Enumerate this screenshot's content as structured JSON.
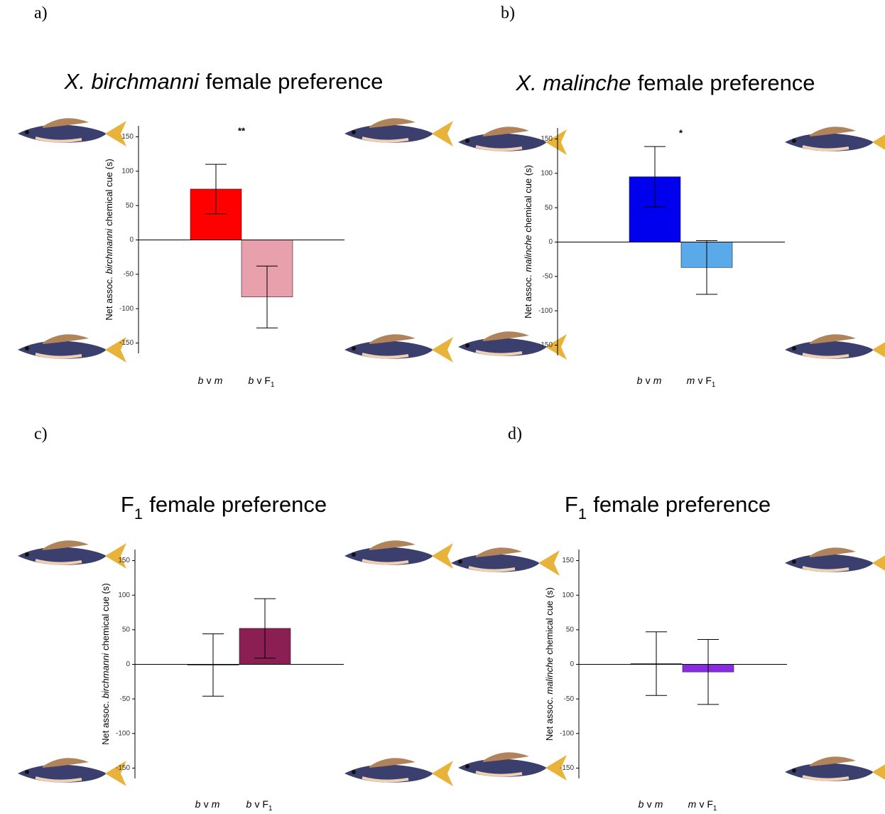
{
  "chart_data": [
    {
      "type": "bar",
      "panel_label": "a)",
      "title": [
        {
          "text": "X. birchmanni",
          "style": "italic"
        },
        {
          "text": "female preference"
        }
      ],
      "ylabel": [
        {
          "text": "Net assoc."
        },
        {
          "text": "birchmanni",
          "style": "italic"
        },
        {
          "text": "chemical cue (s)"
        }
      ],
      "categories": [
        [
          {
            "text": "b",
            "style": "italic"
          },
          {
            "text": "v"
          },
          {
            "text": "m",
            "style": "italic"
          }
        ],
        [
          {
            "text": "b",
            "style": "italic"
          },
          {
            "text": "v F"
          },
          {
            "text": "1",
            "style": "sub"
          }
        ]
      ],
      "values": [
        74,
        -83
      ],
      "errors": [
        36,
        45
      ],
      "colors": [
        "#ff0000",
        "#e8a1ac"
      ],
      "annotation": "**",
      "ylim": [
        -165,
        166
      ],
      "yticks": [
        -150,
        -100,
        -50,
        0,
        50,
        100,
        150
      ]
    },
    {
      "type": "bar",
      "panel_label": "b)",
      "title": [
        {
          "text": "X. malinche",
          "style": "italic"
        },
        {
          "text": "female preference"
        }
      ],
      "ylabel": [
        {
          "text": "Net assoc."
        },
        {
          "text": "malinche",
          "style": "italic"
        },
        {
          "text": "chemical cue (s)"
        }
      ],
      "categories": [
        [
          {
            "text": "b",
            "style": "italic"
          },
          {
            "text": "v"
          },
          {
            "text": "m",
            "style": "italic"
          }
        ],
        [
          {
            "text": "m",
            "style": "italic"
          },
          {
            "text": "v F"
          },
          {
            "text": "1",
            "style": "sub"
          }
        ]
      ],
      "values": [
        95,
        -37
      ],
      "errors": [
        44,
        39
      ],
      "colors": [
        "#0000ee",
        "#5aaaea"
      ],
      "annotation": "*",
      "ylim": [
        -165,
        166
      ],
      "yticks": [
        -150,
        -100,
        -50,
        0,
        50,
        100,
        150
      ]
    },
    {
      "type": "bar",
      "panel_label": "c)",
      "title": [
        {
          "text": "F"
        },
        {
          "text": "1",
          "style": "sub"
        },
        {
          "text": "female preference"
        }
      ],
      "ylabel": [
        {
          "text": "Net assoc."
        },
        {
          "text": "birchmanni",
          "style": "italic"
        },
        {
          "text": "chemical cue (s)"
        }
      ],
      "categories": [
        [
          {
            "text": "b",
            "style": "italic"
          },
          {
            "text": "v"
          },
          {
            "text": "m",
            "style": "italic"
          }
        ],
        [
          {
            "text": "b",
            "style": "italic"
          },
          {
            "text": "v F"
          },
          {
            "text": "1",
            "style": "sub"
          }
        ]
      ],
      "values": [
        -1,
        52
      ],
      "errors": [
        45,
        43
      ],
      "colors": [
        "#8b1e52",
        "#8b1e52"
      ],
      "ylim": [
        -165,
        166
      ],
      "yticks": [
        -150,
        -100,
        -50,
        0,
        50,
        100,
        150
      ]
    },
    {
      "type": "bar",
      "panel_label": "d)",
      "title": [
        {
          "text": "F"
        },
        {
          "text": "1",
          "style": "sub"
        },
        {
          "text": "female preference"
        }
      ],
      "ylabel": [
        {
          "text": "Net assoc."
        },
        {
          "text": "malinche",
          "style": "italic"
        },
        {
          "text": "chemical cue (s)"
        }
      ],
      "categories": [
        [
          {
            "text": "b",
            "style": "italic"
          },
          {
            "text": "v"
          },
          {
            "text": "m",
            "style": "italic"
          }
        ],
        [
          {
            "text": "m",
            "style": "italic"
          },
          {
            "text": "v F"
          },
          {
            "text": "1",
            "style": "sub"
          }
        ]
      ],
      "values": [
        1,
        -11
      ],
      "errors": [
        46,
        47
      ],
      "colors": [
        "#8a2be2",
        "#8a2be2"
      ],
      "ylim": [
        -165,
        166
      ],
      "yticks": [
        -150,
        -100,
        -50,
        0,
        50,
        100,
        150
      ]
    }
  ]
}
